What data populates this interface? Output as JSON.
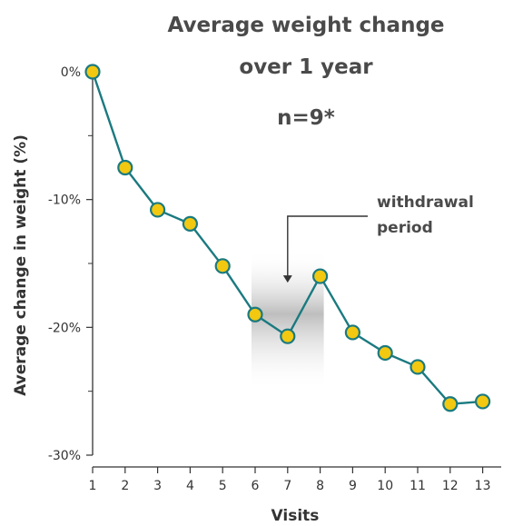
{
  "chart_data": {
    "type": "line",
    "title_lines": [
      "Average weight change",
      "over 1 year"
    ],
    "subtitle": "n=9*",
    "xlabel": "Visits",
    "ylabel": "Average change in weight (%)",
    "x": [
      1,
      2,
      3,
      4,
      5,
      6,
      7,
      8,
      9,
      10,
      11,
      12,
      13
    ],
    "x_tick_labels": [
      "1",
      "2",
      "3",
      "4",
      "5",
      "6",
      "7",
      "8",
      "9",
      "10",
      "11",
      "12",
      "13"
    ],
    "series": [
      {
        "values": [
          0,
          -7.5,
          -10.8,
          -11.9,
          -15.2,
          -19.0,
          -20.7,
          -16.0,
          -20.4,
          -22.0,
          -23.1,
          -26.0,
          -25.8
        ]
      }
    ],
    "ylim": [
      -30,
      0
    ],
    "xlim": [
      1,
      14.2
    ],
    "y_ticks": [
      0,
      -10,
      -20,
      -30
    ],
    "y_tick_labels": [
      "0%",
      "-10%",
      "-20%",
      "-30%"
    ],
    "y_minor_ticks": [
      -5,
      -15,
      -25
    ],
    "annotation": {
      "lines": [
        "withdrawal",
        "period"
      ],
      "x_start": 6,
      "x_end": 8,
      "y_top": -14,
      "y_bottom": -25,
      "arrow_x": 7,
      "arrow_to_y": -16.5
    },
    "colors": {
      "line": "#1a7a80",
      "marker_fill": "#f2c811",
      "marker_stroke": "#1a7a80",
      "axis": "#333333",
      "shade": "#9a9a9a",
      "title": "#4a4a4a"
    },
    "grid": false,
    "legend": "none"
  }
}
